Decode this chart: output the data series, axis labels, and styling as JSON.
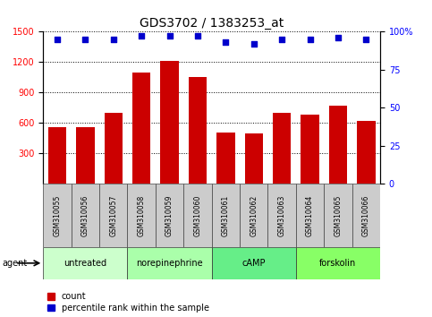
{
  "title": "GDS3702 / 1383253_at",
  "samples": [
    "GSM310055",
    "GSM310056",
    "GSM310057",
    "GSM310058",
    "GSM310059",
    "GSM310060",
    "GSM310061",
    "GSM310062",
    "GSM310063",
    "GSM310064",
    "GSM310065",
    "GSM310066"
  ],
  "counts": [
    560,
    560,
    700,
    1100,
    1210,
    1050,
    510,
    500,
    700,
    680,
    770,
    620
  ],
  "percentile_ranks": [
    95,
    95,
    95,
    97,
    97,
    97,
    93,
    92,
    95,
    95,
    96,
    95
  ],
  "bar_color": "#cc0000",
  "dot_color": "#0000cc",
  "ylim_left": [
    0,
    1500
  ],
  "ylim_right": [
    0,
    100
  ],
  "yticks_left": [
    300,
    600,
    900,
    1200,
    1500
  ],
  "yticks_right": [
    0,
    25,
    50,
    75,
    100
  ],
  "groups": [
    {
      "label": "untreated",
      "start": 0,
      "end": 3,
      "color": "#ccffcc"
    },
    {
      "label": "norepinephrine",
      "start": 3,
      "end": 6,
      "color": "#aaffaa"
    },
    {
      "label": "cAMP",
      "start": 6,
      "end": 9,
      "color": "#66ee88"
    },
    {
      "label": "forskolin",
      "start": 9,
      "end": 12,
      "color": "#88ff66"
    }
  ],
  "sample_row_color": "#cccccc",
  "agent_label": "agent",
  "legend_count_label": "count",
  "legend_pct_label": "percentile rank within the sample",
  "title_fontsize": 10,
  "tick_fontsize": 7,
  "sample_fontsize": 5.5,
  "group_fontsize": 7,
  "legend_fontsize": 7
}
